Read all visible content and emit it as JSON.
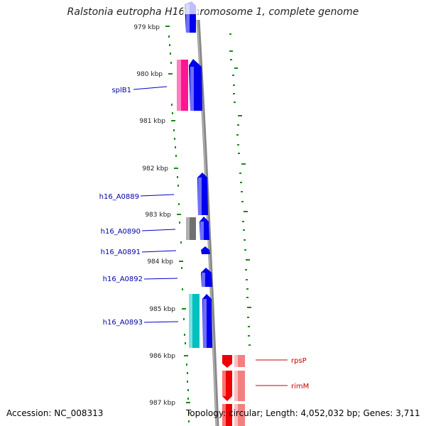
{
  "title": "Ralstonia eutropha H16 chromosome 1, complete genome",
  "accession": "Accession: NC_008313",
  "stats": "Topology: circular; Length: 4,052,032 bp; Genes: 3,711",
  "colors": {
    "cds": "#0000ee",
    "pseudo_pink": "#ff1493",
    "gray_gene": "#707070",
    "cyan_gene": "#00c0c0",
    "rna_red": "#ee0000",
    "rna_light": "#f28080",
    "tick": "#1a8a1a",
    "backbone": "#888888"
  },
  "kbp_ticks": [
    "979 kbp",
    "980 kbp",
    "981 kbp",
    "982 kbp",
    "983 kbp",
    "984 kbp",
    "985 kbp",
    "986 kbp",
    "987 kbp"
  ],
  "gene_labels": [
    "splB1",
    "h16_A0889",
    "h16_A0890",
    "h16_A0891",
    "h16_A0892",
    "h16_A0893",
    "rpsP",
    "rimM"
  ]
}
